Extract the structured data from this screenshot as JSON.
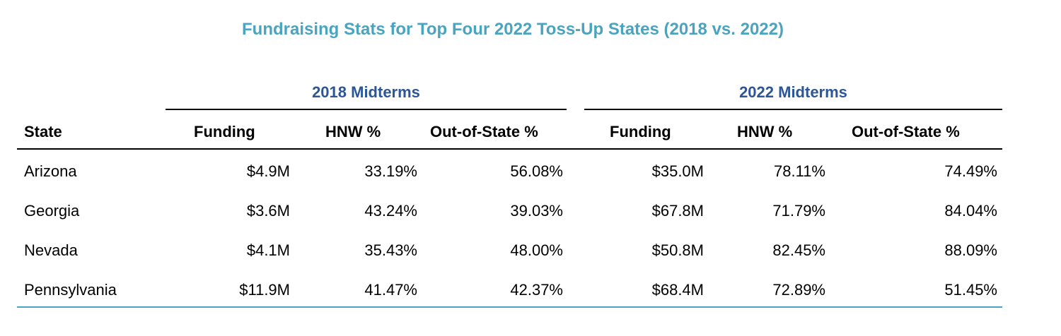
{
  "colors": {
    "title": "#4aa3bf",
    "group_header": "#2c5696",
    "bottom_rule": "#4aa3bf"
  },
  "chart_data": {
    "type": "table",
    "title": "Fundraising Stats for Top Four 2022 Toss-Up States (2018 vs. 2022)",
    "group_headers": [
      "2018 Midterms",
      "2022 Midterms"
    ],
    "columns": [
      "State",
      "Funding",
      "HNW %",
      "Out-of-State %",
      "Funding",
      "HNW %",
      "Out-of-State %"
    ],
    "rows": [
      [
        "Arizona",
        "$4.9M",
        "33.19%",
        "56.08%",
        "$35.0M",
        "78.11%",
        "74.49%"
      ],
      [
        "Georgia",
        "$3.6M",
        "43.24%",
        "39.03%",
        "$67.8M",
        "71.79%",
        "84.04%"
      ],
      [
        "Nevada",
        "$4.1M",
        "35.43%",
        "48.00%",
        "$50.8M",
        "82.45%",
        "88.09%"
      ],
      [
        "Pennsylvania",
        "$11.9M",
        "41.47%",
        "42.37%",
        "$68.4M",
        "72.89%",
        "51.45%"
      ]
    ]
  }
}
